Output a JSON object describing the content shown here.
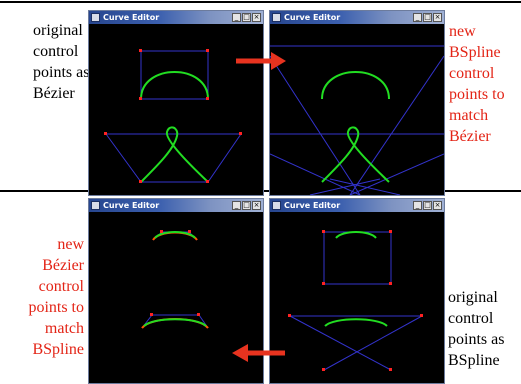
{
  "captions": {
    "top_left": "original\ncontrol\npoints as\nBézier",
    "top_right": "new\nBSpline\ncontrol\npoints to\nmatch\nBézier",
    "bottom_left": "new\nBézier\ncontrol\npoints to\nmatch\nBSpline",
    "bottom_right": "original\ncontrol\npoints as\nBSpline"
  },
  "window": {
    "title": "Curve Editor",
    "min_glyph": "_",
    "max_glyph": "□",
    "close_glyph": "×"
  },
  "colors": {
    "caption_red": "#e32416",
    "curve_green": "#22dd22",
    "curve_red": "#ff5500",
    "control_blue": "#3333cc",
    "point_red": "#ff2222",
    "arrow_red": "#e8331f"
  }
}
